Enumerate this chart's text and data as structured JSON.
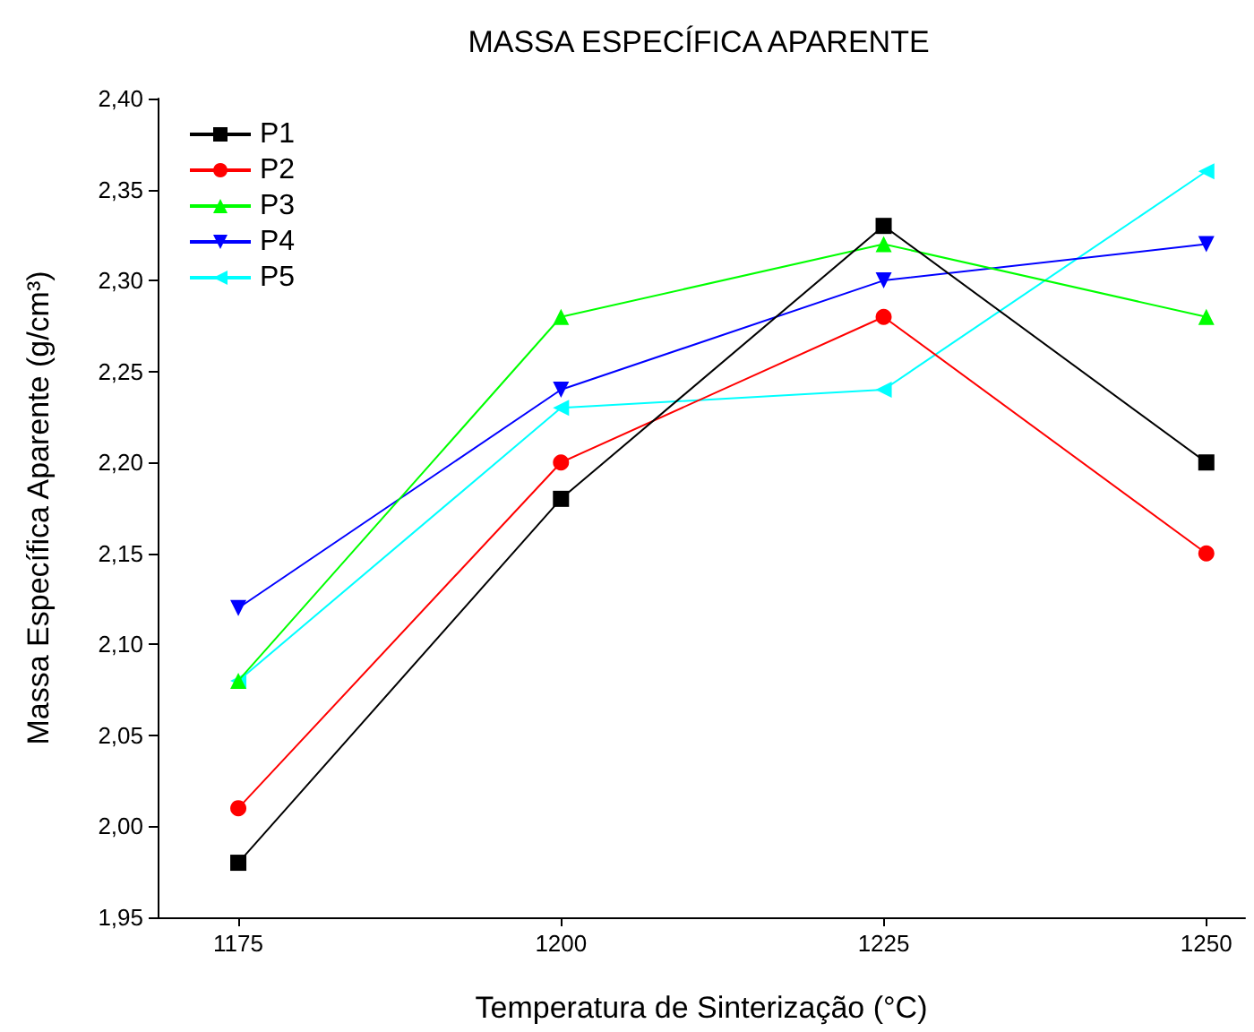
{
  "chart_data": {
    "type": "line",
    "title": "MASSA ESPECÍFICA APARENTE",
    "xlabel": "Temperatura de Sinterização (°C)",
    "ylabel": "Massa Específica Aparente (g/cm³)",
    "x": [
      1175,
      1200,
      1225,
      1250
    ],
    "xlim": [
      1168.75,
      1253
    ],
    "xticks": [
      1175,
      1200,
      1225,
      1250
    ],
    "ylim": [
      1.95,
      2.4
    ],
    "yticks": [
      {
        "value": 1.95,
        "label": "1,95"
      },
      {
        "value": 2.0,
        "label": "2,00"
      },
      {
        "value": 2.05,
        "label": "2,05"
      },
      {
        "value": 2.1,
        "label": "2,10"
      },
      {
        "value": 2.15,
        "label": "2,15"
      },
      {
        "value": 2.2,
        "label": "2,20"
      },
      {
        "value": 2.25,
        "label": "2,25"
      },
      {
        "value": 2.3,
        "label": "2,30"
      },
      {
        "value": 2.35,
        "label": "2,35"
      },
      {
        "value": 2.4,
        "label": "2,40"
      }
    ],
    "grid": false,
    "legend": "top left",
    "line_style": "solid",
    "series": [
      {
        "name": "P1",
        "color": "#000000",
        "marker": "square",
        "values": [
          1.98,
          2.18,
          2.33,
          2.2
        ]
      },
      {
        "name": "P2",
        "color": "#ff0000",
        "marker": "circle",
        "values": [
          2.01,
          2.2,
          2.28,
          2.15
        ]
      },
      {
        "name": "P3",
        "color": "#00ff00",
        "marker": "triangle",
        "values": [
          2.08,
          2.28,
          2.32,
          2.28
        ]
      },
      {
        "name": "P4",
        "color": "#0000ff",
        "marker": "triangle-down",
        "values": [
          2.12,
          2.24,
          2.3,
          2.32
        ]
      },
      {
        "name": "P5",
        "color": "#00ffff",
        "marker": "triangle-left",
        "values": [
          2.08,
          2.23,
          2.24,
          2.36
        ]
      }
    ]
  }
}
